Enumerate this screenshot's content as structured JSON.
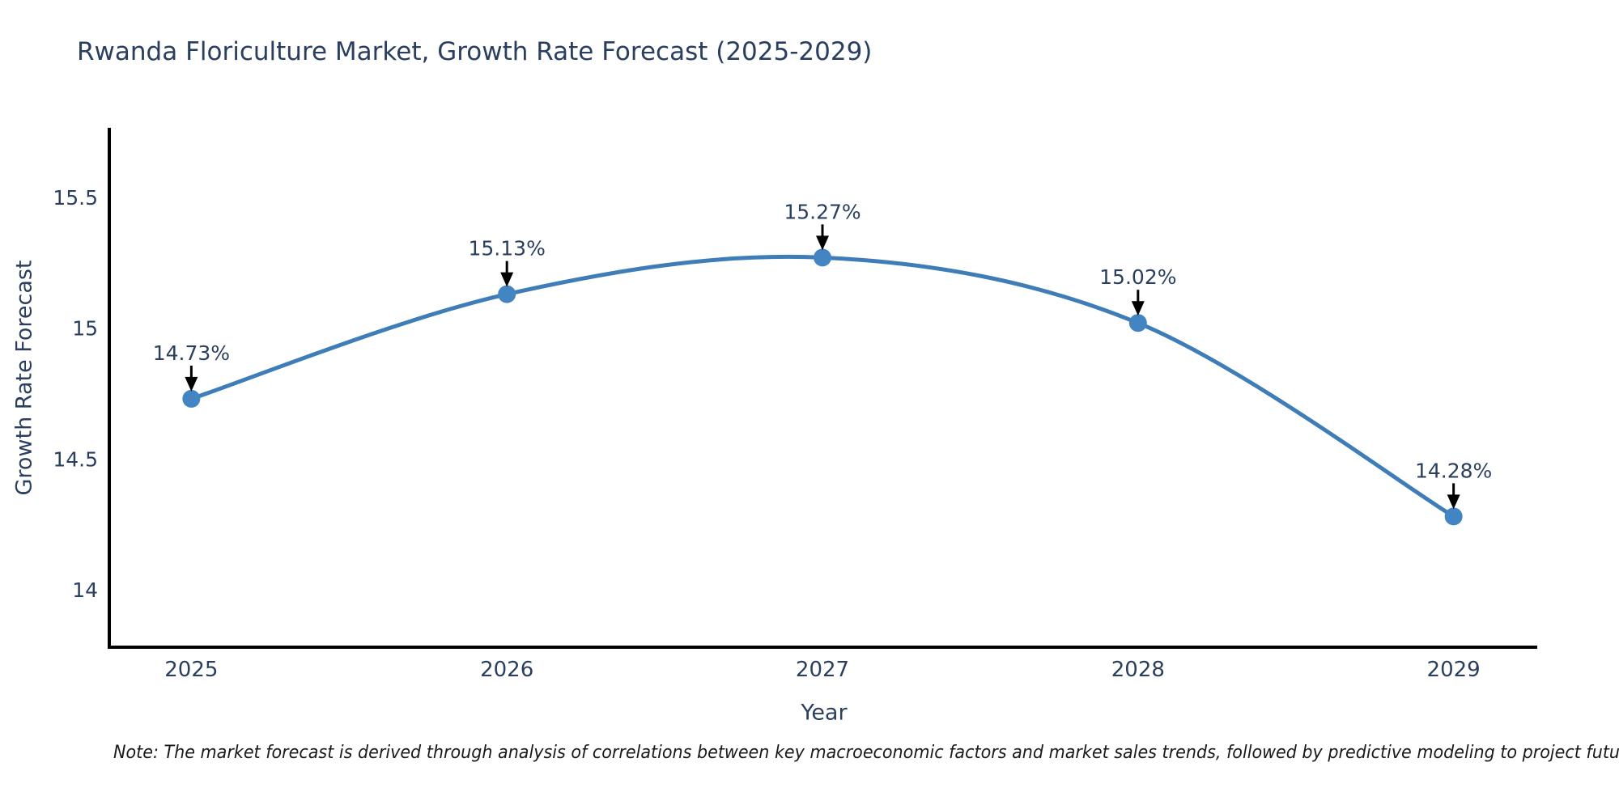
{
  "chart_data": {
    "type": "line",
    "title": "Rwanda Floriculture Market, Growth Rate Forecast (2025-2029)",
    "xlabel": "Year",
    "ylabel": "Growth Rate Forecast",
    "x": [
      2025,
      2026,
      2027,
      2028,
      2029
    ],
    "series": [
      {
        "name": "Growth Rate Forecast",
        "values": [
          14.73,
          15.13,
          15.27,
          15.02,
          14.28
        ]
      }
    ],
    "point_labels": [
      "14.73%",
      "15.13%",
      "15.27%",
      "15.02%",
      "14.28%"
    ],
    "xtick_labels": [
      "2025",
      "2026",
      "2027",
      "2028",
      "2029"
    ],
    "yticks": [
      14,
      14.5,
      15,
      15.5
    ],
    "ytick_labels": [
      "14",
      "14.5",
      "15",
      "15.5"
    ],
    "xlim": [
      2024.74,
      2029.26
    ],
    "ylim": [
      13.78,
      15.76
    ],
    "grid": false,
    "legend_position": "none",
    "line_style": "smooth-spline",
    "marker": "circle",
    "colors": {
      "line": "#3e7db7",
      "marker": "#4285c2",
      "axis": "#000000",
      "tick_text": "#2a3f5f",
      "annotation_text": "#2a3f5f",
      "arrow": "#000000",
      "title_text": "#2a3f5f",
      "note_text": "#1a1a1a",
      "background": "#ffffff"
    },
    "note": "Note: The market forecast is derived through analysis of correlations between key macroeconomic factors and market sales trends, followed by predictive modeling to project future sal"
  }
}
